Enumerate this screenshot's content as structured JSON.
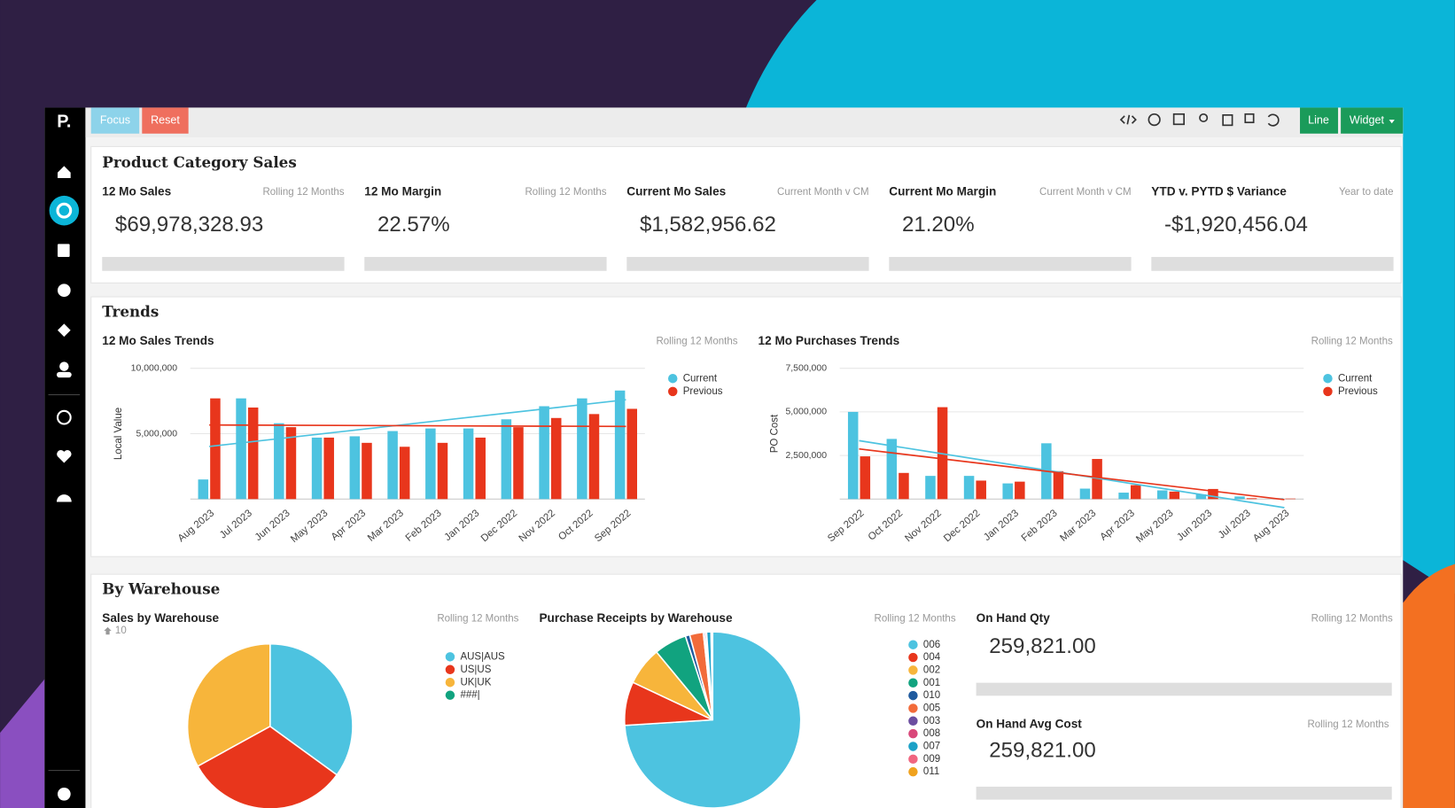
{
  "logo": "P.",
  "toolbar": {
    "buttons": [
      "Focus",
      "Reset",
      "Line",
      "Widget"
    ]
  },
  "product_category_sales": {
    "title": "Product Category Sales",
    "kpis": [
      {
        "title": "12 Mo Sales",
        "subtitle": "Rolling 12 Months",
        "value": "$69,978,328.93"
      },
      {
        "title": "12 Mo Margin",
        "subtitle": "Rolling 12 Months",
        "value": "22.57%"
      },
      {
        "title": "Current Mo Sales",
        "subtitle": "Current Month v CM",
        "value": "$1,582,956.62"
      },
      {
        "title": "Current Mo Margin",
        "subtitle": "Current Month v CM",
        "value": "21.20%"
      },
      {
        "title": "YTD v. PYTD $ Variance",
        "subtitle": "Year to date",
        "value": "-$1,920,456.04"
      }
    ]
  },
  "trends": {
    "title": "Trends"
  },
  "by_warehouse": {
    "title": "By Warehouse",
    "kpis": [
      {
        "title": "On Hand Qty",
        "subtitle": "Rolling 12 Months",
        "value": "259,821.00"
      },
      {
        "title": "On Hand Avg Cost",
        "subtitle": "Rolling 12 Months",
        "value": "259,821.00"
      }
    ]
  },
  "chart_data": [
    {
      "type": "bar",
      "title": "12 Mo Sales Trends",
      "subtitle": "Rolling 12 Months",
      "y_label": "Local Value",
      "categories": [
        "Aug 2023",
        "Jul 2023",
        "Jun 2023",
        "May 2023",
        "Apr 2023",
        "Mar 2023",
        "Feb 2023",
        "Jan 2023",
        "Dec 2022",
        "Nov 2022",
        "Oct 2022",
        "Sep 2022"
      ],
      "series": [
        {
          "name": "Current",
          "color": "#4dc3e0",
          "values": [
            1500000,
            7700000,
            5800000,
            4700000,
            4800000,
            5200000,
            5400000,
            5400000,
            6100000,
            7100000,
            7700000,
            8300000
          ]
        },
        {
          "name": "Previous",
          "color": "#e8361c",
          "values": [
            7700000,
            7000000,
            5500000,
            4700000,
            4300000,
            4000000,
            4300000,
            4700000,
            5500000,
            6200000,
            6500000,
            6900000
          ]
        }
      ],
      "ylim": [
        0,
        10000000
      ],
      "yticks": [
        {
          "value": 5000000,
          "label": "5,000,000"
        },
        {
          "value": 10000000,
          "label": "10,000,000"
        }
      ],
      "grid": true,
      "trendline": true
    },
    {
      "type": "bar",
      "title": "12 Mo Purchases Trends",
      "subtitle": "Rolling 12 Months",
      "y_label": "PO Cost",
      "categories": [
        "Sep 2022",
        "Oct 2022",
        "Nov 2022",
        "Dec 2022",
        "Jan 2023",
        "Feb 2023",
        "Mar 2023",
        "Apr 2023",
        "May 2023",
        "Jun 2023",
        "Jul 2023",
        "Aug 2023"
      ],
      "series": [
        {
          "name": "Current",
          "color": "#4dc3e0",
          "values": [
            5000000,
            3450000,
            1330000,
            1330000,
            900000,
            3200000,
            600000,
            370000,
            500000,
            270000,
            150000,
            50000
          ]
        },
        {
          "name": "Previous",
          "color": "#e8361c",
          "values": [
            2450000,
            1500000,
            5270000,
            1060000,
            1000000,
            1600000,
            2300000,
            800000,
            430000,
            580000,
            50000,
            30000
          ]
        }
      ],
      "ylim": [
        0,
        7500000
      ],
      "yticks": [
        {
          "value": 2500000,
          "label": "2,500,000"
        },
        {
          "value": 5000000,
          "label": "5,000,000"
        },
        {
          "value": 7500000,
          "label": "7,500,000"
        }
      ],
      "grid": true,
      "trendline": true
    },
    {
      "type": "pie",
      "title": "Sales by Warehouse",
      "subtitle": "Rolling 12 Months",
      "note": "10",
      "categories": [
        "AUS|AUS",
        "US|US",
        "UK|UK",
        "###|"
      ],
      "values": [
        35,
        32,
        33,
        0
      ],
      "colors": [
        "#4dc3e0",
        "#e8361c",
        "#f7b53b",
        "#11a37f"
      ]
    },
    {
      "type": "pie",
      "title": "Purchase Receipts by Warehouse",
      "subtitle": "Rolling 12 Months",
      "categories": [
        "006",
        "004",
        "002",
        "001",
        "010",
        "005",
        "003",
        "008",
        "007",
        "009",
        "011"
      ],
      "values": [
        74,
        8,
        7,
        6,
        0.8,
        2.5,
        0.3,
        0.3,
        0.8,
        0.2,
        0.1
      ],
      "colors": [
        "#4dc3e0",
        "#e8361c",
        "#f7b53b",
        "#11a37f",
        "#1f5a9e",
        "#f26b3a",
        "#6b4ea0",
        "#d9487a",
        "#1ba1c7",
        "#f06680",
        "#f0a21e"
      ]
    }
  ]
}
